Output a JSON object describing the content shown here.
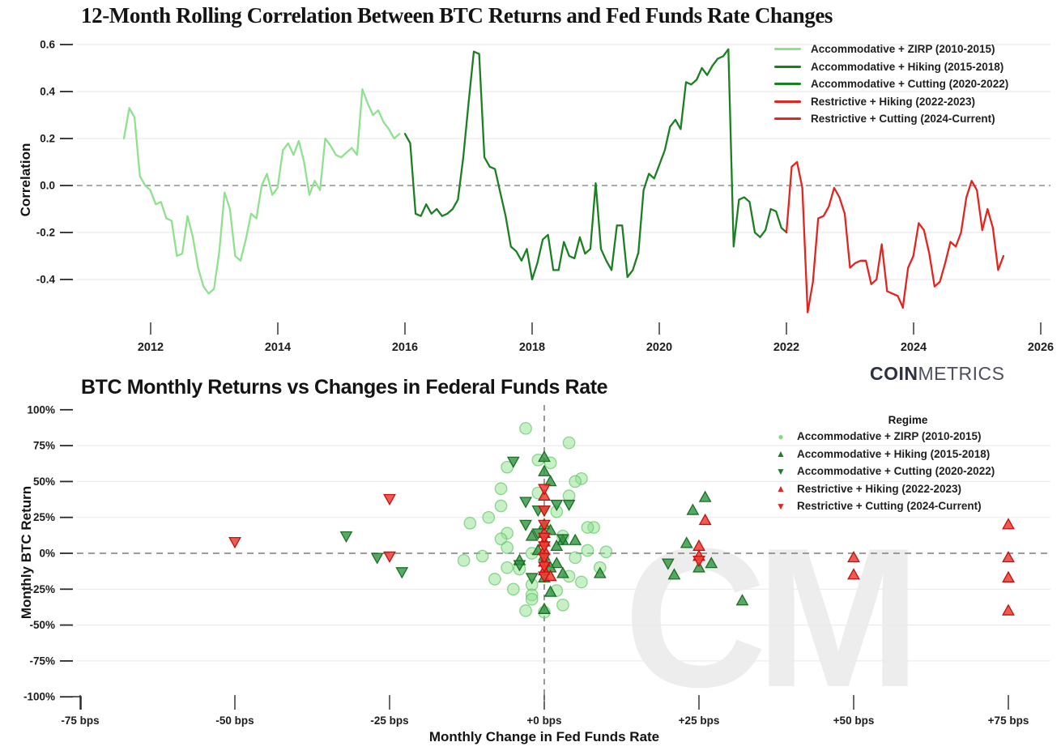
{
  "logo": {
    "bold": "COIN",
    "light": "METRICS"
  },
  "watermark": "CM",
  "top_chart": {
    "title": "12-Month Rolling Correlation Between BTC Returns and Fed Funds Rate Changes",
    "ylabel": "Correlation",
    "ytick_labels": [
      "0.6",
      "0.4",
      "0.2",
      "0.0",
      "-0.2",
      "-0.4"
    ],
    "xtick_labels": [
      "2012",
      "2014",
      "2016",
      "2018",
      "2020",
      "2022",
      "2024",
      "2026"
    ],
    "legend": [
      {
        "label": "Accommodative + ZIRP (2010-2015)",
        "color": "#8fe18f"
      },
      {
        "label": "Accommodative + Hiking (2015-2018)",
        "color": "#1c7f23"
      },
      {
        "label": "Accommodative + Cutting (2020-2022)",
        "color": "#1c7f23"
      },
      {
        "label": "Restrictive + Hiking (2022-2023)",
        "color": "#e12520"
      },
      {
        "label": "Restrictive + Cutting (2024-Current)",
        "color": "#e12520"
      }
    ]
  },
  "bottom_chart": {
    "title": "BTC Monthly Returns vs Changes in Federal Funds Rate",
    "xlabel": "Monthly Change in Fed Funds Rate",
    "ylabel": "Monthly BTC Return",
    "legend_title": "Regime",
    "ytick_labels": [
      "100%",
      "75%",
      "50%",
      "25%",
      "0%",
      "-25%",
      "-50%",
      "-75%",
      "-100%"
    ],
    "xtick_labels": [
      "-75 bps",
      "-50 bps",
      "-25 bps",
      "+0 bps",
      "+25 bps",
      "+50 bps",
      "+75 bps"
    ],
    "legend": [
      {
        "label": "Accommodative + ZIRP (2010-2015)",
        "marker": "circle",
        "color": "#7ddc7d"
      },
      {
        "label": "Accommodative + Hiking (2015-2018)",
        "marker": "triangle-up",
        "color": "#1c7f23"
      },
      {
        "label": "Accommodative + Cutting (2020-2022)",
        "marker": "triangle-down",
        "color": "#1c7f23"
      },
      {
        "label": "Restrictive + Hiking (2022-2023)",
        "marker": "triangle-up",
        "color": "#e12520"
      },
      {
        "label": "Restrictive + Cutting (2024-Current)",
        "marker": "triangle-down",
        "color": "#e12520"
      }
    ]
  },
  "chart_data": [
    {
      "type": "line",
      "title": "12-Month Rolling Correlation Between BTC Returns and Fed Funds Rate Changes",
      "xlabel": "",
      "ylabel": "Correlation",
      "xlim": [
        2010.8,
        2026.2
      ],
      "ylim": [
        -0.57,
        0.62
      ],
      "xticks": [
        2012,
        2014,
        2016,
        2018,
        2020,
        2022,
        2024,
        2026
      ],
      "yticks": [
        0.6,
        0.4,
        0.2,
        0.0,
        -0.2,
        -0.4
      ],
      "zero_line": "dashed",
      "grid": true,
      "legend_position": "top-right",
      "series": [
        {
          "name": "Accommodative + ZIRP (2010-2015)",
          "color": "#8fe18f",
          "x_start": 2011.58,
          "x_step": 0.08333,
          "values": [
            0.2,
            0.33,
            0.29,
            0.04,
            0.0,
            -0.02,
            -0.08,
            -0.07,
            -0.14,
            -0.15,
            -0.3,
            -0.29,
            -0.13,
            -0.22,
            -0.35,
            -0.43,
            -0.46,
            -0.44,
            -0.28,
            -0.03,
            -0.1,
            -0.3,
            -0.32,
            -0.23,
            -0.12,
            -0.14,
            0.0,
            0.05,
            -0.04,
            -0.01,
            0.15,
            0.18,
            0.13,
            0.19,
            0.1,
            -0.04,
            0.02,
            -0.02,
            0.2,
            0.17,
            0.13,
            0.12,
            0.14,
            0.16,
            0.13,
            0.41,
            0.35,
            0.3,
            0.32,
            0.27,
            0.24,
            0.2,
            0.22
          ]
        },
        {
          "name": "Accommodative + Hiking (2015-2018)",
          "color": "#1c7f23",
          "x_start": 2016.0,
          "x_step": 0.08333,
          "values": [
            0.22,
            0.18,
            -0.12,
            -0.13,
            -0.08,
            -0.12,
            -0.1,
            -0.13,
            -0.12,
            -0.1,
            -0.06,
            0.12,
            0.35,
            0.57,
            0.56,
            0.12,
            0.08,
            0.07,
            -0.03,
            -0.13,
            -0.26,
            -0.28,
            -0.32,
            -0.27,
            -0.4,
            -0.33,
            -0.23,
            -0.21,
            -0.36,
            -0.36,
            -0.24,
            -0.3,
            -0.31,
            -0.22,
            -0.29,
            -0.27,
            0.01,
            -0.27,
            -0.32,
            -0.36,
            -0.17,
            -0.17,
            -0.39,
            -0.36,
            -0.29
          ]
        },
        {
          "name": "Accommodative + Cutting (2020-2022)",
          "color": "#1c7f23",
          "x_start": 2019.67,
          "x_step": 0.08333,
          "values": [
            -0.29,
            -0.02,
            0.05,
            0.03,
            0.09,
            0.15,
            0.25,
            0.28,
            0.24,
            0.44,
            0.43,
            0.45,
            0.5,
            0.47,
            0.51,
            0.54,
            0.55,
            0.58,
            -0.26,
            -0.06,
            -0.05,
            -0.07,
            -0.2,
            -0.22,
            -0.19,
            -0.1,
            -0.11,
            -0.18,
            -0.2
          ]
        },
        {
          "name": "Restrictive + Hiking (2022-2023)",
          "color": "#e12520",
          "x_start": 2022.0,
          "x_step": 0.08333,
          "values": [
            -0.2,
            0.08,
            0.1,
            -0.01,
            -0.54,
            -0.41,
            -0.14,
            -0.13,
            -0.09,
            -0.01,
            -0.05,
            -0.12,
            -0.35,
            -0.33,
            -0.32,
            -0.32,
            -0.42,
            -0.4,
            -0.25,
            -0.45,
            -0.46,
            -0.47,
            -0.52
          ]
        },
        {
          "name": "Restrictive + Cutting (2024-Current)",
          "color": "#e12520",
          "x_start": 2023.83,
          "x_step": 0.08333,
          "values": [
            -0.52,
            -0.35,
            -0.3,
            -0.16,
            -0.19,
            -0.29,
            -0.43,
            -0.41,
            -0.33,
            -0.24,
            -0.26,
            -0.2,
            -0.05,
            0.02,
            -0.02,
            -0.19,
            -0.1,
            -0.18,
            -0.36,
            -0.3
          ]
        }
      ]
    },
    {
      "type": "scatter",
      "title": "BTC Monthly Returns vs Changes in Federal Funds Rate",
      "xlabel": "Monthly Change in Fed Funds Rate",
      "ylabel": "Monthly BTC Return",
      "x_unit": "bps",
      "y_unit": "percent",
      "xlim": [
        -80,
        82
      ],
      "ylim": [
        -103,
        103
      ],
      "xticks": [
        -75,
        -50,
        -25,
        0,
        25,
        50,
        75
      ],
      "yticks": [
        100,
        75,
        50,
        25,
        0,
        -25,
        -50,
        -75,
        -100
      ],
      "zero_lines": "dashed-cross",
      "legend_title": "Regime",
      "series": [
        {
          "name": "Accommodative + ZIRP (2010-2015)",
          "marker": "circle",
          "fill": "#8fe18f",
          "stroke": "#58c25e",
          "opacity": 0.5,
          "points": [
            [
              -3,
              87
            ],
            [
              4,
              77
            ],
            [
              -1,
              65
            ],
            [
              1,
              63
            ],
            [
              -6,
              60
            ],
            [
              6,
              52
            ],
            [
              5,
              50
            ],
            [
              -7,
              45
            ],
            [
              -1,
              42
            ],
            [
              4,
              40
            ],
            [
              -7,
              33
            ],
            [
              2,
              29
            ],
            [
              -9,
              25
            ],
            [
              -12,
              21
            ],
            [
              8,
              18
            ],
            [
              7,
              18
            ],
            [
              -6,
              14
            ],
            [
              3,
              12
            ],
            [
              -7,
              10
            ],
            [
              -6,
              4
            ],
            [
              7,
              2
            ],
            [
              10,
              1
            ],
            [
              -2,
              0
            ],
            [
              -10,
              -2
            ],
            [
              5,
              -3
            ],
            [
              -13,
              -5
            ],
            [
              -6,
              -10
            ],
            [
              -4,
              -11
            ],
            [
              9,
              -10
            ],
            [
              4,
              -16
            ],
            [
              -8,
              -18
            ],
            [
              6,
              -20
            ],
            [
              -2,
              -22
            ],
            [
              -5,
              -25
            ],
            [
              2,
              -26
            ],
            [
              -2,
              -29
            ],
            [
              -2,
              -32
            ],
            [
              3,
              -36
            ],
            [
              -3,
              -40
            ],
            [
              0,
              -41
            ]
          ]
        },
        {
          "name": "Accommodative + Hiking (2015-2018)",
          "marker": "triangle-up",
          "fill": "#2e9440",
          "stroke": "#14691d",
          "opacity": 0.8,
          "points": [
            [
              0,
              67
            ],
            [
              0,
              57
            ],
            [
              1,
              50
            ],
            [
              26,
              39
            ],
            [
              24,
              30
            ],
            [
              23,
              7
            ],
            [
              5,
              9
            ],
            [
              27,
              -7
            ],
            [
              25,
              -10
            ],
            [
              21,
              -15
            ],
            [
              32,
              -33
            ],
            [
              0,
              20
            ],
            [
              1,
              16
            ],
            [
              -2,
              12
            ],
            [
              3,
              9
            ],
            [
              2,
              5
            ],
            [
              -1,
              2
            ],
            [
              0,
              -2
            ],
            [
              -4,
              -5
            ],
            [
              2,
              -7
            ],
            [
              1,
              -10
            ],
            [
              3,
              -14
            ],
            [
              9,
              -14
            ],
            [
              0,
              -17
            ],
            [
              1,
              -27
            ],
            [
              0,
              -39
            ]
          ]
        },
        {
          "name": "Accommodative + Cutting (2020-2022)",
          "marker": "triangle-down",
          "fill": "#2e9440",
          "stroke": "#14691d",
          "opacity": 0.8,
          "points": [
            [
              -5,
              64
            ],
            [
              -3,
              36
            ],
            [
              2,
              34
            ],
            [
              4,
              34
            ],
            [
              -1,
              30
            ],
            [
              0,
              30
            ],
            [
              -3,
              20
            ],
            [
              -1,
              14
            ],
            [
              3,
              10
            ],
            [
              -32,
              12
            ],
            [
              -27,
              -3
            ],
            [
              -23,
              -13
            ],
            [
              20,
              -7
            ],
            [
              -4,
              -8
            ],
            [
              -2,
              -17
            ]
          ]
        },
        {
          "name": "Restrictive + Hiking (2022-2023)",
          "marker": "triangle-up",
          "fill": "#ef3d35",
          "stroke": "#bf120f",
          "opacity": 0.85,
          "points": [
            [
              26,
              23
            ],
            [
              25,
              5
            ],
            [
              25,
              -2
            ],
            [
              50,
              -3
            ],
            [
              50,
              -15
            ],
            [
              75,
              20
            ],
            [
              75,
              -3
            ],
            [
              75,
              -17
            ],
            [
              75,
              -40
            ],
            [
              0,
              40
            ],
            [
              0,
              14
            ],
            [
              0,
              8
            ],
            [
              0,
              2
            ],
            [
              0,
              -6
            ],
            [
              0,
              -12
            ],
            [
              1,
              -16
            ]
          ]
        },
        {
          "name": "Restrictive + Cutting (2024-Current)",
          "marker": "triangle-down",
          "fill": "#ef3d35",
          "stroke": "#bf120f",
          "opacity": 0.85,
          "points": [
            [
              -50,
              8
            ],
            [
              -25,
              38
            ],
            [
              -25,
              -2
            ],
            [
              0,
              45
            ],
            [
              0,
              30
            ],
            [
              0,
              20
            ],
            [
              0,
              11
            ],
            [
              0,
              5
            ],
            [
              0,
              -3
            ],
            [
              0,
              -9
            ],
            [
              0,
              -16
            ],
            [
              25,
              -5
            ]
          ]
        }
      ]
    }
  ]
}
